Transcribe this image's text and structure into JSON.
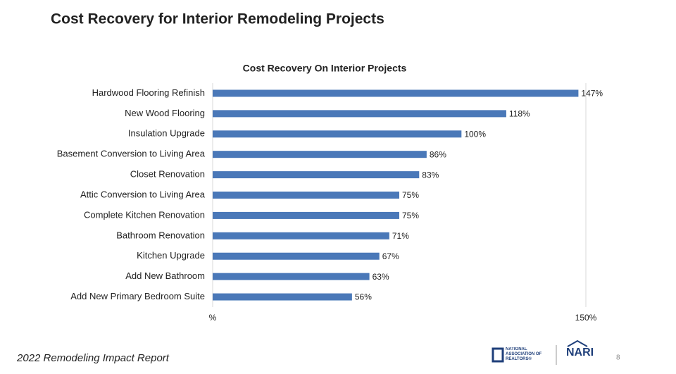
{
  "header": {
    "title": "Cost Recovery for Interior Remodeling Projects"
  },
  "chart_data": {
    "type": "bar",
    "orientation": "horizontal",
    "title": "Cost Recovery On Interior Projects",
    "categories": [
      "Hardwood Flooring Refinish",
      "New Wood Flooring",
      "Insulation Upgrade",
      "Basement Conversion to Living Area",
      "Closet Renovation",
      "Attic Conversion to Living Area",
      "Complete Kitchen Renovation",
      "Bathroom Renovation",
      "Kitchen Upgrade",
      "Add New Bathroom",
      "Add New Primary Bedroom Suite"
    ],
    "values": [
      147,
      118,
      100,
      86,
      83,
      75,
      75,
      71,
      67,
      63,
      56
    ],
    "value_labels": [
      "147%",
      "118%",
      "100%",
      "86%",
      "83%",
      "75%",
      "75%",
      "71%",
      "67%",
      "63%",
      "56%"
    ],
    "color": "#4a78b8",
    "xlim": [
      0,
      150
    ],
    "xticks": [
      {
        "value": 0,
        "label": "%"
      },
      {
        "value": 150,
        "label": "150%"
      }
    ],
    "grid": true
  },
  "footer": {
    "text": "2022 Remodeling Impact Report",
    "page": "8"
  },
  "logos": {
    "realtors": "NATIONAL ASSOCIATION OF REALTORS®",
    "nari": "NARI"
  }
}
